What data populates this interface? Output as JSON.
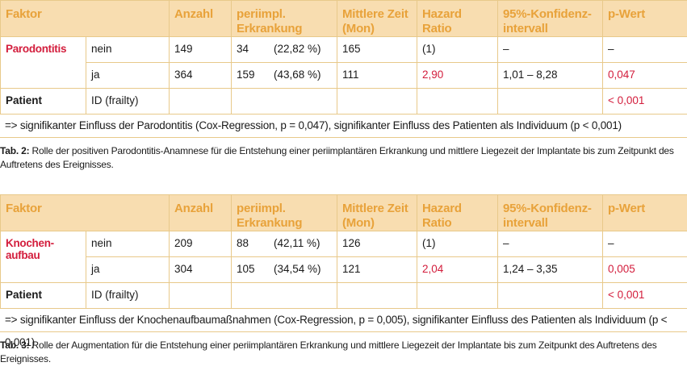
{
  "columns": [
    "Faktor",
    "Anzahl",
    "periimpl. Erkrankung",
    "Mittlere Zeit (Mon)",
    "Hazard Ratio",
    "95%-Konfidenz-intervall",
    "p-Wert"
  ],
  "header": {
    "faktor": "Faktor",
    "anzahl": "Anzahl",
    "erk1": "periimpl.",
    "erk2": "Erkrankung",
    "zeit1": "Mittlere Zeit",
    "zeit2": "(Mon)",
    "hr1": "Hazard",
    "hr2": "Ratio",
    "ki1": "95%-Konfidenz-",
    "ki2": "intervall",
    "p": "p-Wert"
  },
  "table1": {
    "factor": "Parodontitis",
    "rows": [
      {
        "level": "nein",
        "n": "149",
        "erk": "34",
        "pct": "(22,82 %)",
        "zeit": "165",
        "hr": "(1)",
        "ki": "–",
        "p": "–"
      },
      {
        "level": "ja",
        "n": "364",
        "erk": "159",
        "pct": "(43,68 %)",
        "zeit": "111",
        "hr": "2,90",
        "ki": "1,01 – 8,28",
        "p": "0,047"
      }
    ],
    "patient": {
      "label": "Patient",
      "level": "ID (frailty)",
      "p": "< 0,001"
    },
    "note": "=> signifikanter Einfluss der Parodontitis (Cox-Regression, p = 0,047), signifikanter Einfluss des Patienten als Individuum (p < 0,001)",
    "caption_label": "Tab. 2:",
    "caption": " Rolle der positiven Parodontitis-Anamnese für die Entstehung einer periimplantären Erkrankung und mittlere Liegezeit der Implantate bis zum Zeitpunkt des Auftretens des Ereignisses."
  },
  "table2": {
    "factor_l1": "Knochen-",
    "factor_l2": "aufbau",
    "rows": [
      {
        "level": "nein",
        "n": "209",
        "erk": "88",
        "pct": "(42,11 %)",
        "zeit": "126",
        "hr": "(1)",
        "ki": "–",
        "p": "–"
      },
      {
        "level": "ja",
        "n": "304",
        "erk": "105",
        "pct": "(34,54 %)",
        "zeit": "121",
        "hr": "2,04",
        "ki": "1,24 – 3,35",
        "p": "0,005"
      }
    ],
    "patient": {
      "label": "Patient",
      "level": "ID (frailty)",
      "p": "< 0,001"
    },
    "note": "=> signifikanter Einfluss der Knochenaufbaumaßnahmen (Cox-Regression, p = 0,005),  signifikanter Einfluss des Patienten als Individuum (p < 0,001)",
    "caption_label": "Tab. 3:",
    "caption": " Rolle der Augmentation für die Entstehung einer periimplantären Erkrankung und mittlere Liegezeit der Implantate bis zum Zeitpunkt des Auftretens des Ereignisses."
  },
  "colors": {
    "header_bg": "#f8ddb0",
    "header_text": "#e8a23a",
    "accent_red": "#d31d3c",
    "rule": "#e8c98a"
  }
}
